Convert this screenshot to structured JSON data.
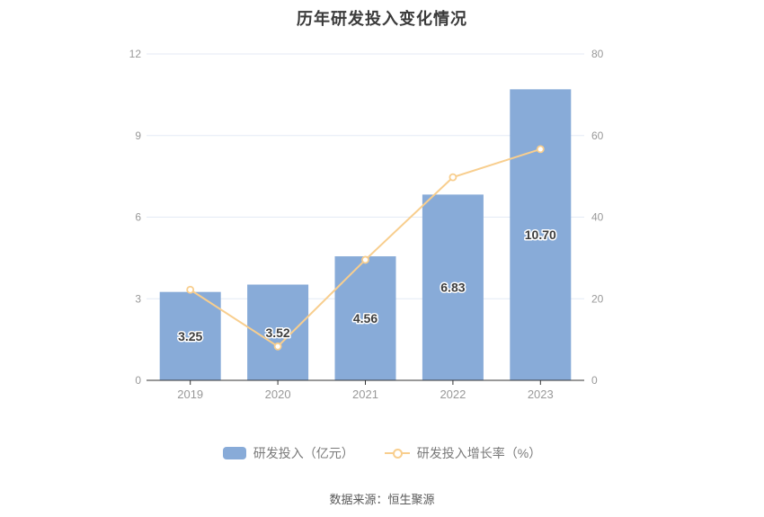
{
  "title": "历年研发投入变化情况",
  "source_note": "数据来源：恒生聚源",
  "legend": {
    "items": [
      {
        "label": "研发投入（亿元）",
        "marker": "bar"
      },
      {
        "label": "研发投入增长率（%）",
        "marker": "line"
      }
    ]
  },
  "colors": {
    "bar": "#88abd8",
    "line": "#f8ce8e",
    "marker_fill": "#ffffff",
    "grid": "#e4eaf5",
    "axis_line": "#333333",
    "axis_label": "#999999",
    "value_label": "#3d3d3d",
    "value_label_halo": "#ffffff",
    "background": "#ffffff"
  },
  "chart_data": {
    "type": "bar",
    "title": "历年研发投入变化情况",
    "categories": [
      "2019",
      "2020",
      "2021",
      "2022",
      "2023"
    ],
    "series": [
      {
        "name": "研发投入（亿元）",
        "type": "bar",
        "axis": "left",
        "values": [
          3.25,
          3.52,
          4.56,
          6.83,
          10.7
        ],
        "value_labels": [
          "3.25",
          "3.52",
          "4.56",
          "6.83",
          "10.70"
        ]
      },
      {
        "name": "研发投入增长率（%）",
        "type": "line",
        "axis": "right",
        "values": [
          22.2,
          8.31,
          29.55,
          49.78,
          56.66
        ]
      }
    ],
    "left_axis": {
      "min": 0,
      "max": 12,
      "ticks": [
        0,
        3,
        6,
        9,
        12
      ]
    },
    "right_axis": {
      "min": 0,
      "max": 80,
      "ticks": [
        0,
        20,
        40,
        60,
        80
      ]
    },
    "grid": true,
    "legend_position": "bottom"
  }
}
